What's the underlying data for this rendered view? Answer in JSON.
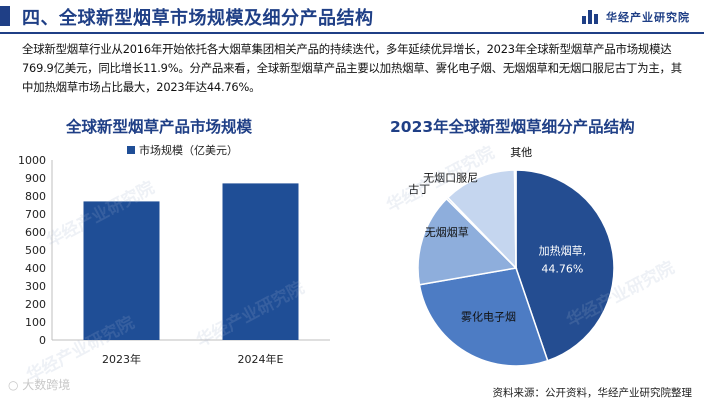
{
  "header": {
    "title": "四、全球新型烟草市场规模及细分产品结构",
    "brand": "华经产业研究院"
  },
  "intro": "全球新型烟草行业从2016年开始依托各大烟草集团相关产品的持续迭代，多年延续优异增长，2023年全球新型烟草产品市场规模达769.9亿美元，同比增长11.9%。分产品来看，全球新型烟草产品主要以加热烟草、雾化电子烟、无烟烟草和无烟口服尼古丁为主，其中加热烟草市场占比最大，2023年达44.76%。",
  "footer": {
    "source": "资料来源：公开资料，华经产业研究院整理",
    "corner_text": "大数跨境"
  },
  "watermark": "华经产业研究院",
  "colors": {
    "brand": "#1f3f86",
    "bar": "#1f4e96",
    "pie": [
      "#244d91",
      "#4d7cc4",
      "#8eaedc",
      "#c5d6ef"
    ]
  },
  "chart_data": [
    {
      "type": "bar",
      "title": "全球新型烟草产品市场规模",
      "categories": [
        "2023年",
        "2024年E"
      ],
      "series": [
        {
          "name": "市场规模（亿美元）",
          "values": [
            769.9,
            870
          ]
        }
      ],
      "ylim": [
        0,
        1000
      ],
      "yticks": [
        0,
        100,
        200,
        300,
        400,
        500,
        600,
        700,
        800,
        900,
        1000
      ],
      "grid": false,
      "legend": "top"
    },
    {
      "type": "pie",
      "title": "2023年全球新型烟草细分产品结构",
      "slices": [
        {
          "label": "加热烟草,",
          "value": 44.76,
          "value_text": "44.76%"
        },
        {
          "label": "雾化电子烟",
          "value": 27.5
        },
        {
          "label": "无烟烟草",
          "value": 15.2
        },
        {
          "label": "古丁",
          "value": 0.3
        },
        {
          "label": "无烟口服尼",
          "value": 12.0
        },
        {
          "label": "其他",
          "value": 0.24
        }
      ]
    }
  ]
}
